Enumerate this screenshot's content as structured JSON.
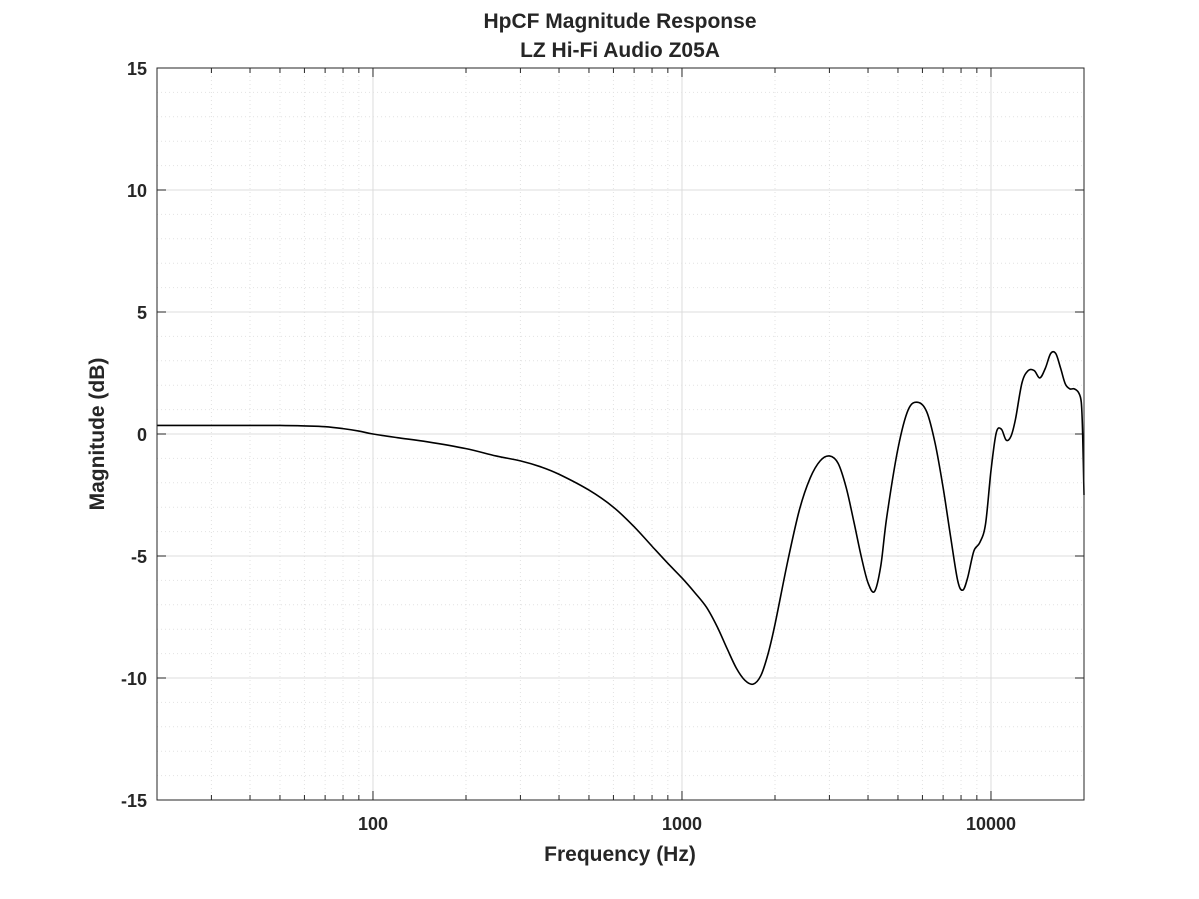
{
  "chart_data": {
    "type": "line",
    "title": "HpCF Magnitude Response",
    "subtitle": "LZ Hi-Fi Audio Z05A",
    "xlabel": "Frequency (Hz)",
    "ylabel": "Magnitude (dB)",
    "xscale": "log",
    "xlim": [
      20,
      20000
    ],
    "ylim": [
      -15,
      15
    ],
    "xticks": [
      100,
      1000,
      10000
    ],
    "xtick_labels": [
      "100",
      "1000",
      "10000"
    ],
    "yticks": [
      15,
      10,
      5,
      0,
      -5,
      -10,
      -15
    ],
    "ytick_labels": [
      "15",
      "10",
      "5",
      "0",
      "-5",
      "-10",
      "-15"
    ],
    "grid": true,
    "minor_grid": true,
    "colors": {
      "line": "#000000",
      "axes": "#262626",
      "grid": "#dcdcdc"
    },
    "series": [
      {
        "x": [
          20,
          30,
          40,
          50,
          60,
          70,
          80,
          90,
          100,
          120,
          150,
          200,
          250,
          300,
          350,
          400,
          500,
          600,
          700,
          800,
          900,
          1000,
          1100,
          1200,
          1300,
          1400,
          1500,
          1600,
          1700,
          1800,
          1900,
          2000,
          2200,
          2400,
          2600,
          2800,
          3000,
          3200,
          3400,
          3600,
          3800,
          4000,
          4200,
          4400,
          4600,
          5000,
          5400,
          5800,
          6200,
          6600,
          7000,
          7400,
          7800,
          8100,
          8400,
          8800,
          9200,
          9600,
          10000,
          10400,
          10800,
          11200,
          11600,
          12000,
          12600,
          13200,
          13800,
          14400,
          15000,
          15600,
          16200,
          16800,
          17400,
          18000,
          18600,
          19200,
          19600,
          19800,
          20000
        ],
        "y": [
          0.35,
          0.35,
          0.35,
          0.35,
          0.33,
          0.3,
          0.22,
          0.12,
          0.0,
          -0.15,
          -0.32,
          -0.6,
          -0.9,
          -1.1,
          -1.35,
          -1.65,
          -2.3,
          -3.0,
          -3.8,
          -4.6,
          -5.3,
          -5.9,
          -6.5,
          -7.1,
          -7.9,
          -8.8,
          -9.6,
          -10.1,
          -10.25,
          -9.9,
          -9.0,
          -7.8,
          -5.2,
          -3.1,
          -1.8,
          -1.1,
          -0.9,
          -1.2,
          -2.2,
          -3.6,
          -5.0,
          -6.1,
          -6.45,
          -5.4,
          -3.4,
          -0.6,
          1.0,
          1.3,
          0.9,
          -0.4,
          -2.2,
          -4.2,
          -6.0,
          -6.4,
          -5.9,
          -4.8,
          -4.45,
          -3.7,
          -1.5,
          0.05,
          0.2,
          -0.25,
          -0.1,
          0.6,
          2.1,
          2.6,
          2.6,
          2.3,
          2.7,
          3.3,
          3.3,
          2.7,
          2.05,
          1.85,
          1.85,
          1.7,
          1.3,
          0.0,
          -2.5
        ]
      }
    ]
  }
}
